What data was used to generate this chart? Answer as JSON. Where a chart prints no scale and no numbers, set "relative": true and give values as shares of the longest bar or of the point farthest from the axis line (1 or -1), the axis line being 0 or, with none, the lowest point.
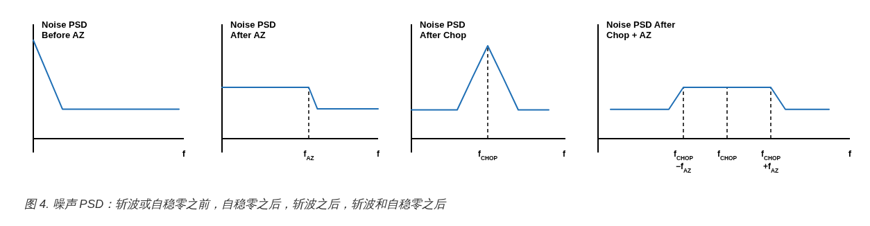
{
  "chart_data": [
    {
      "type": "line",
      "title": "Noise PSD\nBefore AZ",
      "xlabel": "f",
      "relative": true,
      "tick_labels": "x",
      "marker": "none",
      "line_style": "solid",
      "categories": [
        null,
        null,
        null,
        null,
        null,
        null,
        null,
        null,
        null,
        null,
        null
      ],
      "series": [
        {
          "color": "#1f6fb5",
          "values": [
            1,
            0.65,
            0.3,
            0.3,
            0.3,
            0.3,
            0.3,
            0.3,
            0.3,
            0.3,
            0.3
          ]
        }
      ],
      "annotations": [
        "图 4. 噪声 PSD：斩波或自稳零之前，自稳零之后，斩波之后，斩波和自稳零之后"
      ]
    },
    {
      "type": "line",
      "title": "Noise PSD\nAfter AZ",
      "relative": true,
      "tick_labels": "x",
      "marker": "none",
      "line_style": "solid",
      "categories": [
        null,
        null,
        null,
        null,
        null,
        null,
        null,
        null,
        null,
        null,
        "f$_{AZ}$",
        null,
        null,
        null,
        null,
        null,
        null,
        null,
        "f"
      ],
      "series": [
        {
          "color": "#1f6fb5",
          "values": [
            1,
            1,
            1,
            1,
            1,
            1,
            1,
            1,
            1,
            1,
            1,
            0.58,
            0.58,
            0.58,
            0.58,
            0.58,
            0.58,
            0.58,
            0.58
          ]
        }
      ],
      "ref_lines": [
        {
          "axis": "x",
          "value": "f$_{AZ}$",
          "color": "#000000",
          "line_style": "dashed"
        }
      ]
    },
    {
      "type": "line",
      "title": "Noise PSD\nAfter Chop",
      "relative": true,
      "tick_labels": "x",
      "marker": "none",
      "line_style": "solid",
      "categories": [
        null,
        null,
        null,
        null,
        null,
        "f$_{CHOP}$",
        null,
        null,
        null,
        null,
        "f"
      ],
      "series": [
        {
          "color": "#1f6fb5",
          "values": [
            0.31,
            0.31,
            0.31,
            0.31,
            0.66,
            1,
            0.66,
            0.31,
            0.31,
            0.31,
            null
          ]
        }
      ],
      "ref_lines": [
        {
          "axis": "x",
          "value": "f$_{CHOP}$",
          "color": "#000000",
          "line_style": "dashed"
        }
      ]
    },
    {
      "type": "line",
      "title": "Noise PSD After\nChop + AZ",
      "xlabel": "f",
      "relative": true,
      "tick_labels": "x",
      "marker": "none",
      "line_style": "solid",
      "categories": [
        null,
        null,
        null,
        null,
        null,
        "f$_{CHOP}$\n−f$_{AZ}$",
        null,
        null,
        "f$_{CHOP}$",
        null,
        null,
        "f$_{CHOP}$\n+f$_{AZ}$",
        null,
        null,
        null,
        null
      ],
      "series": [
        {
          "color": "#1f6fb5",
          "values": [
            0.57,
            0.57,
            0.57,
            0.57,
            0.57,
            1,
            1,
            1,
            1,
            1,
            1,
            1,
            0.57,
            0.57,
            0.57,
            0.57
          ]
        }
      ],
      "ref_lines": [
        {
          "axis": "x",
          "value": "f$_{CHOP}$\n−f$_{AZ}$",
          "color": "#000000",
          "line_style": "dashed"
        },
        {
          "axis": "x",
          "value": "f$_{CHOP}$",
          "color": "#000000",
          "line_style": "dashed"
        },
        {
          "axis": "x",
          "value": "f$_{CHOP}$\n+f$_{AZ}$",
          "color": "#000000",
          "line_style": "dashed"
        }
      ]
    }
  ]
}
